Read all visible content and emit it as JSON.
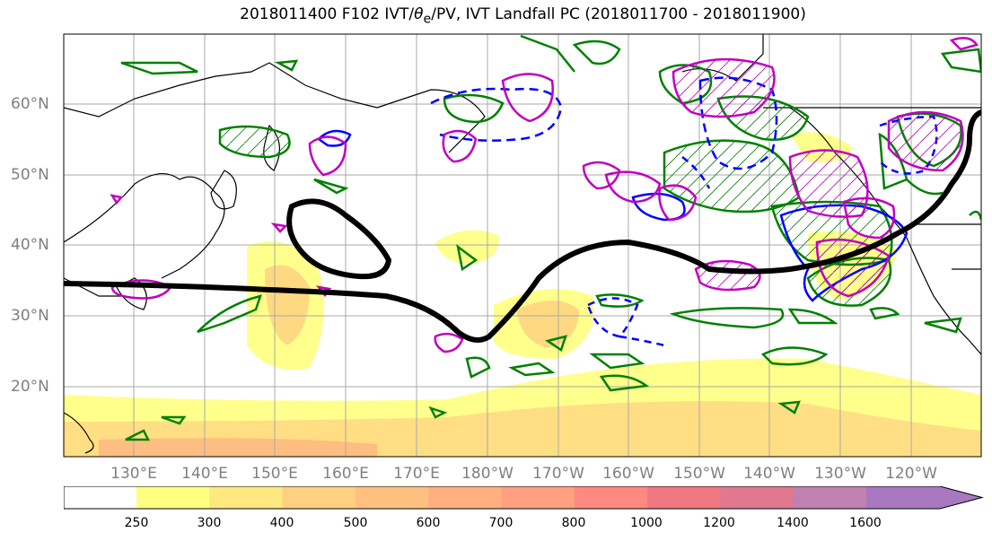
{
  "title": {
    "prefix": "2018011400 F102 IVT/",
    "theta": "θ",
    "theta_sub": "e",
    "suffix": "/PV, IVT Landfall PC (2018011700 - 2018011900)"
  },
  "lat_labels": [
    "60°N",
    "50°N",
    "40°N",
    "30°N",
    "20°N"
  ],
  "lon_labels": [
    "130°E",
    "140°E",
    "150°E",
    "160°E",
    "170°E",
    "180°W",
    "170°W",
    "160°W",
    "150°W",
    "140°W",
    "130°W",
    "120°W"
  ],
  "colorbar": {
    "levels": [
      "250",
      "300",
      "400",
      "500",
      "600",
      "700",
      "800",
      "1000",
      "1200",
      "1400",
      "1600"
    ],
    "colors": [
      "#ffff80",
      "#ffe880",
      "#ffd080",
      "#ffc080",
      "#ffb080",
      "#ffa080",
      "#ff8880",
      "#f07880",
      "#e07890",
      "#c080b0",
      "#a878c0"
    ]
  },
  "colors": {
    "ivt_pc_contour": "#000000",
    "theta_e_contour": "#008000",
    "pv_contour": "#0000ff",
    "pc_contour": "#c000c0",
    "grid": "#a9a9a9",
    "coast": "#000000"
  }
}
